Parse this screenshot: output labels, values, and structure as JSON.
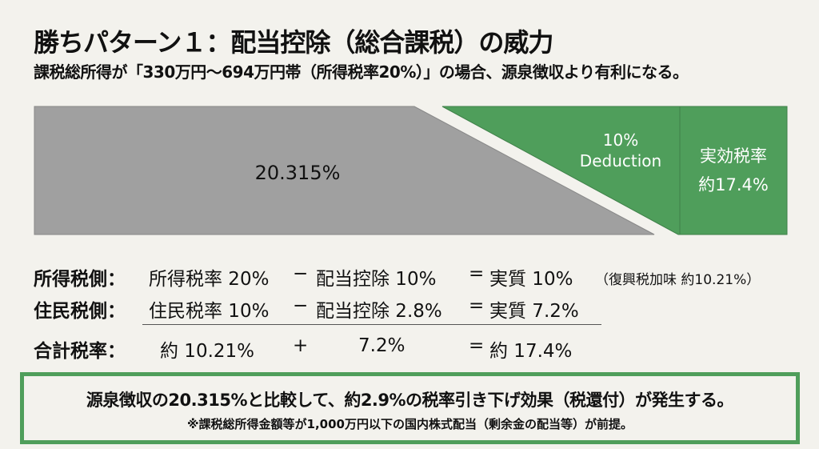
{
  "header": {
    "title": "勝ちパターン１：配当控除（総合課税）の威力",
    "subtitle": "課税総所得が「330万円〜694万円帯（所得税率20%）」の場合、源泉徴収より有利になる。"
  },
  "diagram": {
    "withholding_label": "20.315%",
    "deduction_label_line1": "10%",
    "deduction_label_line2": "Deduction",
    "effective_label_line1": "実効税率",
    "effective_label_line2": "約17.4%",
    "colors": {
      "gray": "#a0a0a0",
      "green": "#4f9e5b",
      "background": "#f3f2ed"
    }
  },
  "formula": {
    "rows": [
      {
        "label": "所得税側：",
        "a": "所得税率 20%",
        "op": "−",
        "b": "配当控除 10%",
        "eq": "=",
        "result": "実質 10%",
        "note": "（復興税加味 約10.21%）"
      },
      {
        "label": "住民税側：",
        "a": "住民税率 10%",
        "op": "−",
        "b": "配当控除 2.8%",
        "eq": "=",
        "result": "実質 7.2%"
      },
      {
        "label": "合計税率：",
        "a": "約 10.21%",
        "op": "+",
        "b": "7.2%",
        "eq": "=",
        "result": "約 17.4%"
      }
    ]
  },
  "conclusion": {
    "main": "源泉徴収の20.315%と比較して、約2.9%の税率引き下げ効果（税還付）が発生する。",
    "footnote": "※課税総所得金額等が1,000万円以下の国内株式配当（剰余金の配当等）が前提。"
  }
}
